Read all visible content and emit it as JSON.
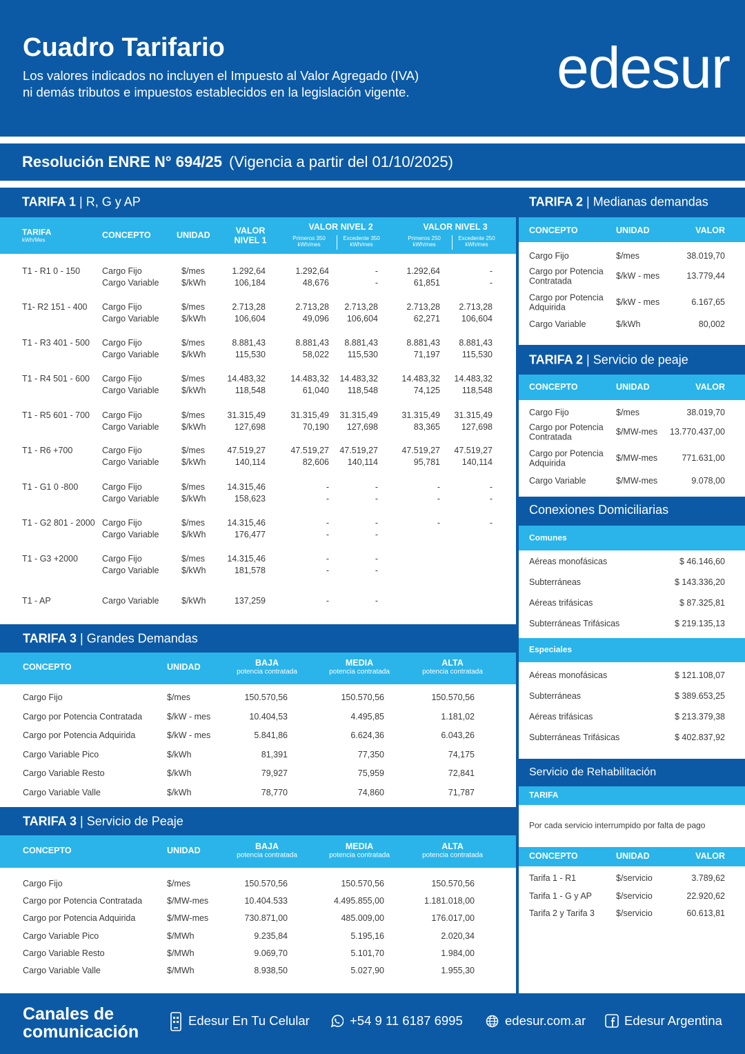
{
  "header": {
    "title": "Cuadro Tarifario",
    "subtitle": [
      "Los valores indicados no incluyen el Impuesto al Valor Agregado (IVA)",
      "ni demás tributos e impuestos establecidos en la legislación vigente."
    ],
    "logo": "edesur"
  },
  "resolution": {
    "label": "Resolución ENRE N° 694/25",
    "note": "(Vigencia a partir del 01/10/2025)"
  },
  "tarifa1": {
    "title_bold": "TARIFA 1",
    "title_rest": "| R, G y AP",
    "headers": {
      "tarifa": "TARIFA",
      "tarifa_sub": "kWh/Mes",
      "concepto": "CONCEPTO",
      "unidad": "UNIDAD",
      "nivel1": "VALOR NIVEL 1",
      "nivel2": "VALOR NIVEL 2",
      "nivel2_a": "Primeros 350 kWh/mes",
      "nivel2_b": "Excedente 350 kWh/mes",
      "nivel3": "VALOR NIVEL 3",
      "nivel3_a": "Primeros 250 kWh/mes",
      "nivel3_b": "Excedente 250 kWh/mes"
    },
    "groups": [
      {
        "tarifa": "T1 - R1 0 - 150",
        "lines": [
          [
            "Cargo Fijo",
            "$/mes",
            "1.292,64",
            "1.292,64",
            "-",
            "1.292,64",
            "-"
          ],
          [
            "Cargo Variable",
            "$/kWh",
            "106,184",
            "48,676",
            "-",
            "61,851",
            "-"
          ]
        ]
      },
      {
        "tarifa": "T1- R2 151 - 400",
        "lines": [
          [
            "Cargo Fijo",
            "$/mes",
            "2.713,28",
            "2.713,28",
            "2.713,28",
            "2.713,28",
            "2.713,28"
          ],
          [
            "Cargo Variable",
            "$/kWh",
            "106,604",
            "49,096",
            "106,604",
            "62,271",
            "106,604"
          ]
        ]
      },
      {
        "tarifa": "T1 - R3 401 - 500",
        "lines": [
          [
            "Cargo Fijo",
            "$/mes",
            "8.881,43",
            "8.881,43",
            "8.881,43",
            "8.881,43",
            "8.881,43"
          ],
          [
            "Cargo Variable",
            "$/kWh",
            "115,530",
            "58,022",
            "115,530",
            "71,197",
            "115,530"
          ]
        ]
      },
      {
        "tarifa": "T1 - R4 501 - 600",
        "lines": [
          [
            "Cargo Fijo",
            "$/mes",
            "14.483,32",
            "14.483,32",
            "14.483,32",
            "14.483,32",
            "14.483,32"
          ],
          [
            "Cargo Variable",
            "$/kWh",
            "118,548",
            "61,040",
            "118,548",
            "74,125",
            "118,548"
          ]
        ]
      },
      {
        "tarifa": "T1 - R5 601 - 700",
        "lines": [
          [
            "Cargo Fijo",
            "$/mes",
            "31.315,49",
            "31.315,49",
            "31.315,49",
            "31.315,49",
            "31.315,49"
          ],
          [
            "Cargo Variable",
            "$/kWh",
            "127,698",
            "70,190",
            "127,698",
            "83,365",
            "127,698"
          ]
        ]
      },
      {
        "tarifa": "T1 - R6 +700",
        "lines": [
          [
            "Cargo Fijo",
            "$/mes",
            "47.519,27",
            "47.519,27",
            "47.519,27",
            "47.519,27",
            "47.519,27"
          ],
          [
            "Cargo Variable",
            "$/kWh",
            "140,114",
            "82,606",
            "140,114",
            "95,781",
            "140,114"
          ]
        ]
      },
      {
        "tarifa": "T1 - G1 0 -800",
        "lines": [
          [
            "Cargo Fijo",
            "$/mes",
            "14.315,46",
            "-",
            "-",
            "-",
            "-"
          ],
          [
            "Cargo Variable",
            "$/kWh",
            "158,623",
            "-",
            "-",
            "-",
            "-"
          ]
        ]
      },
      {
        "tarifa": "T1 - G2 801 - 2000",
        "lines": [
          [
            "Cargo Fijo",
            "$/mes",
            "14.315,46",
            "-",
            "-",
            "-",
            "-"
          ],
          [
            "Cargo Variable",
            "$/kWh",
            "176,477",
            "-",
            "-",
            null,
            null
          ]
        ]
      },
      {
        "tarifa": "T1 - G3 +2000",
        "lines": [
          [
            "Cargo Fijo",
            "$/mes",
            "14.315,46",
            "-",
            "-",
            null,
            null
          ],
          [
            "Cargo Variable",
            "$/kWh",
            "181,578",
            "-",
            "-",
            null,
            null
          ]
        ]
      },
      {
        "tarifa": "T1 - AP",
        "lines": [
          [
            "Cargo Variable",
            "$/kWh",
            "137,259",
            "-",
            "-",
            null,
            null
          ]
        ]
      }
    ]
  },
  "tarifa3": {
    "title_bold": "TARIFA 3",
    "title_rest": "| Grandes Demandas",
    "headers": {
      "concepto": "CONCEPTO",
      "unidad": "UNIDAD",
      "baja": "BAJA",
      "media": "MEDIA",
      "alta": "ALTA",
      "sub": "potencia contratada"
    },
    "rows": [
      [
        "Cargo Fijo",
        "$/mes",
        "150.570,56",
        "150.570,56",
        "150.570,56"
      ],
      [
        "Cargo por Potencia Contratada",
        "$/kW - mes",
        "10.404,53",
        "4.495,85",
        "1.181,02"
      ],
      [
        "Cargo por Potencia Adquirida",
        "$/kW - mes",
        "5.841,86",
        "6.624,36",
        "6.043,26"
      ],
      [
        "Cargo Variable Pico",
        "$/kWh",
        "81,391",
        "77,350",
        "74,175"
      ],
      [
        "Cargo Variable Resto",
        "$/kWh",
        "79,927",
        "75,959",
        "72,841"
      ],
      [
        "Cargo Variable Valle",
        "$/kWh",
        "78,770",
        "74,860",
        "71,787"
      ]
    ]
  },
  "tarifa3_peaje": {
    "title_bold": "TARIFA 3",
    "title_rest": "| Servicio de Peaje",
    "headers": {
      "concepto": "CONCEPTO",
      "unidad": "UNIDAD",
      "baja": "BAJA",
      "media": "MEDIA",
      "alta": "ALTA",
      "sub": "potencia contratada"
    },
    "rows": [
      [
        "Cargo Fijo",
        "$/mes",
        "150.570,56",
        "150.570,56",
        "150.570,56"
      ],
      [
        "Cargo por Potencia Contratada",
        "$/MW-mes",
        "10.404.533",
        "4.495.855,00",
        "1.181.018,00"
      ],
      [
        "Cargo por Potencia Adquirida",
        "$/MW-mes",
        "730.871,00",
        "485.009,00",
        "176.017,00"
      ],
      [
        "Cargo Variable Pico",
        "$/MWh",
        "9.235,84",
        "5.195,16",
        "2.020,34"
      ],
      [
        "Cargo Variable Resto",
        "$/MWh",
        "9.069,70",
        "5.101,70",
        "1.984,00"
      ],
      [
        "Cargo Variable Valle",
        "$/MWh",
        "8.938,50",
        "5.027,90",
        "1.955,30"
      ]
    ]
  },
  "tarifa2": {
    "title_bold": "TARIFA 2",
    "title_rest": "| Medianas demandas",
    "headers": {
      "concepto": "CONCEPTO",
      "unidad": "UNIDAD",
      "valor": "VALOR"
    },
    "rows": [
      [
        "Cargo Fijo",
        "$/mes",
        "38.019,70"
      ],
      [
        "Cargo por Potencia Contratada",
        "$/kW - mes",
        "13.779,44"
      ],
      [
        "Cargo por Potencia Adquirida",
        "$/kW - mes",
        "6.167,65"
      ],
      [
        "Cargo Variable",
        "$/kWh",
        "80,002"
      ]
    ]
  },
  "tarifa2_peaje": {
    "title_bold": "TARIFA 2",
    "title_rest": "| Servicio de peaje",
    "headers": {
      "concepto": "CONCEPTO",
      "unidad": "UNIDAD",
      "valor": "VALOR"
    },
    "rows": [
      [
        "Cargo Fijo",
        "$/mes",
        "38.019,70"
      ],
      [
        "Cargo por Potencia Contratada",
        "$/MW-mes",
        "13.770.437,00"
      ],
      [
        "Cargo por Potencia Adquirida",
        "$/MW-mes",
        "771.631,00"
      ],
      [
        "Cargo Variable",
        "$/MW-mes",
        "9.078,00"
      ]
    ]
  },
  "conexiones": {
    "title": "Conexiones Domiciliarias",
    "comunes": {
      "label": "Comunes",
      "rows": [
        [
          "Aéreas monofásicas",
          "$ 46.146,60"
        ],
        [
          "Subterráneas",
          "$ 143.336,20"
        ],
        [
          "Aéreas trifásicas",
          "$ 87.325,81"
        ],
        [
          "Subterráneas Trifásicas",
          "$ 219.135,13"
        ]
      ]
    },
    "especiales": {
      "label": "Especiales",
      "rows": [
        [
          "Aéreas monofásicas",
          "$ 121.108,07"
        ],
        [
          "Subterráneas",
          "$ 389.653,25"
        ],
        [
          "Aéreas trifásicas",
          "$ 213.379,38"
        ],
        [
          "Subterráneas Trifásicas",
          "$ 402.837,92"
        ]
      ]
    }
  },
  "rehabilitacion": {
    "title": "Servicio de Rehabilitación",
    "tarifa_label": "TARIFA",
    "description": "Por cada servicio interrumpido por falta de pago",
    "headers": {
      "concepto": "CONCEPTO",
      "unidad": "UNIDAD",
      "valor": "VALOR"
    },
    "rows": [
      [
        "Tarifa 1 - R1",
        "$/servicio",
        "3.789,62"
      ],
      [
        "Tarifa 1 - G y AP",
        "$/servicio",
        "22.920,62"
      ],
      [
        "Tarifa 2 y Tarifa 3",
        "$/servicio",
        "60.613,81"
      ]
    ]
  },
  "footer": {
    "title": "Canales de comunicación",
    "channels": [
      "Edesur En Tu Celular",
      "+54 9 11 6187 6995",
      "edesur.com.ar",
      "Edesur Argentina"
    ]
  }
}
